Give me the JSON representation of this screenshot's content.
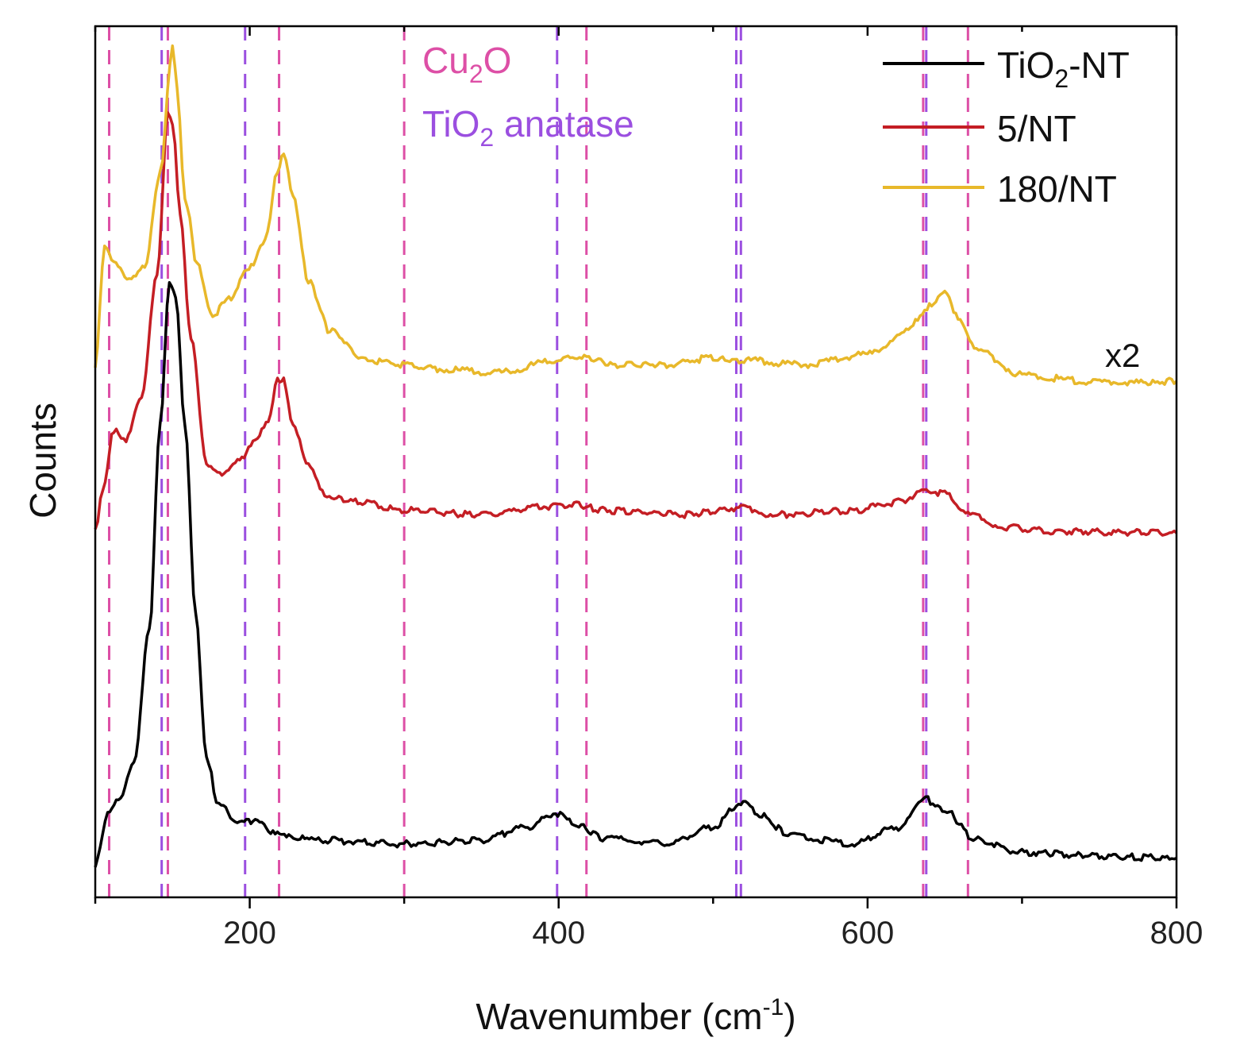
{
  "chart_data": {
    "type": "line",
    "title": "",
    "xlabel": "Wavenumber (cm",
    "xlabel_sup": "-1",
    "xlabel_end": ")",
    "ylabel": "Counts",
    "xlim": [
      100,
      800
    ],
    "ylim": [
      0,
      1.0
    ],
    "x_ticks": [
      200,
      400,
      600,
      800
    ],
    "x_ticks_labels": [
      "200",
      "400",
      "600",
      "800"
    ],
    "x_minor_ticks": [
      100,
      300,
      500,
      700
    ],
    "grid": false,
    "legend_position": "top-right",
    "series": [
      {
        "name_main": "TiO",
        "name_sub": "2",
        "name_end": "-NT",
        "color": "#000000",
        "points": [
          [
            100,
            0.02
          ],
          [
            108,
            0.08
          ],
          [
            115,
            0.1
          ],
          [
            125,
            0.14
          ],
          [
            135,
            0.3
          ],
          [
            142,
            0.55
          ],
          [
            148,
            0.72
          ],
          [
            152,
            0.7
          ],
          [
            158,
            0.55
          ],
          [
            165,
            0.32
          ],
          [
            172,
            0.15
          ],
          [
            180,
            0.09
          ],
          [
            195,
            0.07
          ],
          [
            205,
            0.075
          ],
          [
            215,
            0.06
          ],
          [
            240,
            0.05
          ],
          [
            300,
            0.045
          ],
          [
            350,
            0.05
          ],
          [
            380,
            0.065
          ],
          [
            398,
            0.082
          ],
          [
            410,
            0.07
          ],
          [
            430,
            0.052
          ],
          [
            470,
            0.045
          ],
          [
            500,
            0.065
          ],
          [
            518,
            0.095
          ],
          [
            530,
            0.08
          ],
          [
            550,
            0.055
          ],
          [
            590,
            0.045
          ],
          [
            620,
            0.065
          ],
          [
            636,
            0.1
          ],
          [
            650,
            0.085
          ],
          [
            670,
            0.05
          ],
          [
            700,
            0.035
          ],
          [
            750,
            0.03
          ],
          [
            800,
            0.028
          ]
        ]
      },
      {
        "name": "5/NT",
        "color": "#c41e24",
        "points": [
          [
            100,
            0.42
          ],
          [
            105,
            0.47
          ],
          [
            112,
            0.54
          ],
          [
            120,
            0.53
          ],
          [
            130,
            0.58
          ],
          [
            140,
            0.73
          ],
          [
            147,
            0.92
          ],
          [
            150,
            0.91
          ],
          [
            155,
            0.8
          ],
          [
            162,
            0.65
          ],
          [
            172,
            0.5
          ],
          [
            182,
            0.49
          ],
          [
            195,
            0.51
          ],
          [
            205,
            0.53
          ],
          [
            212,
            0.555
          ],
          [
            218,
            0.6
          ],
          [
            222,
            0.6
          ],
          [
            228,
            0.55
          ],
          [
            238,
            0.5
          ],
          [
            250,
            0.46
          ],
          [
            270,
            0.455
          ],
          [
            300,
            0.445
          ],
          [
            350,
            0.44
          ],
          [
            395,
            0.45
          ],
          [
            410,
            0.453
          ],
          [
            430,
            0.445
          ],
          [
            480,
            0.44
          ],
          [
            518,
            0.448
          ],
          [
            540,
            0.44
          ],
          [
            590,
            0.445
          ],
          [
            620,
            0.455
          ],
          [
            638,
            0.47
          ],
          [
            650,
            0.465
          ],
          [
            665,
            0.44
          ],
          [
            690,
            0.425
          ],
          [
            720,
            0.42
          ],
          [
            800,
            0.418
          ]
        ]
      },
      {
        "name": "180/NT",
        "color": "#e8b82a",
        "points": [
          [
            100,
            0.62
          ],
          [
            106,
            0.76
          ],
          [
            112,
            0.74
          ],
          [
            122,
            0.72
          ],
          [
            132,
            0.74
          ],
          [
            142,
            0.85
          ],
          [
            150,
            1.0
          ],
          [
            153,
            0.95
          ],
          [
            158,
            0.82
          ],
          [
            166,
            0.74
          ],
          [
            176,
            0.68
          ],
          [
            188,
            0.7
          ],
          [
            198,
            0.73
          ],
          [
            210,
            0.77
          ],
          [
            218,
            0.85
          ],
          [
            222,
            0.875
          ],
          [
            228,
            0.82
          ],
          [
            238,
            0.72
          ],
          [
            252,
            0.66
          ],
          [
            275,
            0.625
          ],
          [
            320,
            0.615
          ],
          [
            360,
            0.61
          ],
          [
            400,
            0.625
          ],
          [
            415,
            0.63
          ],
          [
            435,
            0.62
          ],
          [
            470,
            0.62
          ],
          [
            500,
            0.628
          ],
          [
            520,
            0.625
          ],
          [
            560,
            0.62
          ],
          [
            600,
            0.632
          ],
          [
            625,
            0.66
          ],
          [
            640,
            0.69
          ],
          [
            650,
            0.71
          ],
          [
            660,
            0.67
          ],
          [
            672,
            0.635
          ],
          [
            700,
            0.608
          ],
          [
            740,
            0.6
          ],
          [
            780,
            0.598
          ],
          [
            800,
            0.6
          ]
        ]
      }
    ],
    "reference_lines": {
      "Cu2O": {
        "color": "#dd4fa6",
        "positions": [
          109,
          147,
          219,
          300,
          418,
          636,
          665
        ]
      },
      "TiO2_anatase": {
        "color": "#9b4fe0",
        "positions": [
          143,
          197,
          399,
          515,
          518,
          638
        ]
      }
    },
    "annotations": {
      "cu2o_main": "Cu",
      "cu2o_sub": "2",
      "cu2o_end": "O",
      "tio2_main": "TiO",
      "tio2_sub": "2",
      "tio2_end": " anatase",
      "scale": "x2"
    }
  }
}
